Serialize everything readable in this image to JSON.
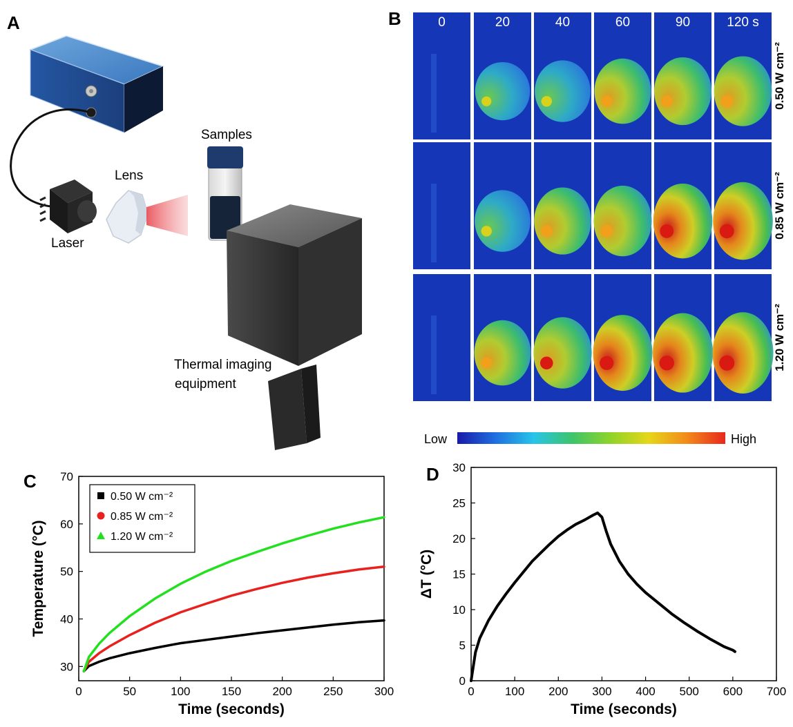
{
  "panels": {
    "a": {
      "letter": "A",
      "labels": {
        "samples": "Samples",
        "lens": "Lens",
        "laser": "Laser",
        "thermal_line1": "Thermal imaging",
        "thermal_line2": "equipment"
      }
    },
    "b": {
      "letter": "B",
      "time_labels": [
        "0",
        "20",
        "40",
        "60",
        "90",
        "120 s"
      ],
      "row_labels": [
        "0.50 W cm⁻²",
        "0.85 W cm⁻²",
        "1.20 W cm⁻²"
      ],
      "colorbar": {
        "low": "Low",
        "high": "High",
        "colors": [
          "#1a1aa8",
          "#1f6fe0",
          "#29c4e8",
          "#3ec46a",
          "#8ed42a",
          "#e6d61a",
          "#f28a1a",
          "#e8281e"
        ]
      }
    },
    "c": {
      "letter": "C"
    },
    "d": {
      "letter": "D"
    }
  },
  "chart_data": [
    {
      "type": "line",
      "panel": "C",
      "xlabel": "Time (seconds)",
      "ylabel": "Temperature (°C)",
      "xlim": [
        0,
        300
      ],
      "ylim": [
        27,
        70
      ],
      "xticks": [
        0,
        50,
        100,
        150,
        200,
        250,
        300
      ],
      "yticks": [
        30,
        40,
        50,
        60,
        70
      ],
      "legend_position": "top-left",
      "series": [
        {
          "name": "0.50 W cm⁻²",
          "color": "#000000",
          "marker": "square",
          "x": [
            5,
            10,
            20,
            30,
            50,
            75,
            100,
            125,
            150,
            175,
            200,
            225,
            250,
            275,
            300
          ],
          "y": [
            29.0,
            30.1,
            31.0,
            31.7,
            32.8,
            33.9,
            34.9,
            35.6,
            36.3,
            37.0,
            37.6,
            38.2,
            38.8,
            39.3,
            39.7
          ]
        },
        {
          "name": "0.85 W cm⁻²",
          "color": "#e8201e",
          "marker": "circle",
          "x": [
            5,
            10,
            20,
            30,
            50,
            75,
            100,
            125,
            150,
            175,
            200,
            225,
            250,
            275,
            300
          ],
          "y": [
            29.0,
            31.0,
            32.8,
            34.2,
            36.6,
            39.2,
            41.4,
            43.2,
            44.9,
            46.3,
            47.6,
            48.7,
            49.6,
            50.4,
            51.0
          ]
        },
        {
          "name": "1.20 W cm⁻²",
          "color": "#22e01e",
          "marker": "triangle",
          "x": [
            5,
            10,
            20,
            30,
            50,
            75,
            100,
            125,
            150,
            175,
            200,
            225,
            250,
            275,
            300
          ],
          "y": [
            29.0,
            32.0,
            34.8,
            37.0,
            40.6,
            44.3,
            47.4,
            50.0,
            52.2,
            54.1,
            55.9,
            57.5,
            59.0,
            60.3,
            61.4
          ]
        }
      ]
    },
    {
      "type": "line",
      "panel": "D",
      "xlabel": "Time (seconds)",
      "ylabel": "ΔT (°C)",
      "xlim": [
        0,
        700
      ],
      "ylim": [
        0,
        30
      ],
      "xticks": [
        0,
        100,
        200,
        300,
        400,
        500,
        600,
        700
      ],
      "yticks": [
        0,
        5,
        10,
        15,
        20,
        25,
        30
      ],
      "series": [
        {
          "color": "#000000",
          "x": [
            0,
            10,
            20,
            40,
            60,
            80,
            100,
            120,
            140,
            160,
            180,
            200,
            220,
            240,
            260,
            280,
            290,
            300,
            310,
            320,
            340,
            360,
            380,
            400,
            430,
            460,
            490,
            520,
            550,
            580,
            600,
            605
          ],
          "y": [
            0,
            4.0,
            6.0,
            8.5,
            10.5,
            12.2,
            13.8,
            15.3,
            16.8,
            18.0,
            19.2,
            20.3,
            21.2,
            22.0,
            22.6,
            23.3,
            23.6,
            23.0,
            21.0,
            19.2,
            16.8,
            15.0,
            13.6,
            12.4,
            10.9,
            9.4,
            8.1,
            6.9,
            5.8,
            4.8,
            4.3,
            4.1
          ]
        }
      ]
    }
  ]
}
